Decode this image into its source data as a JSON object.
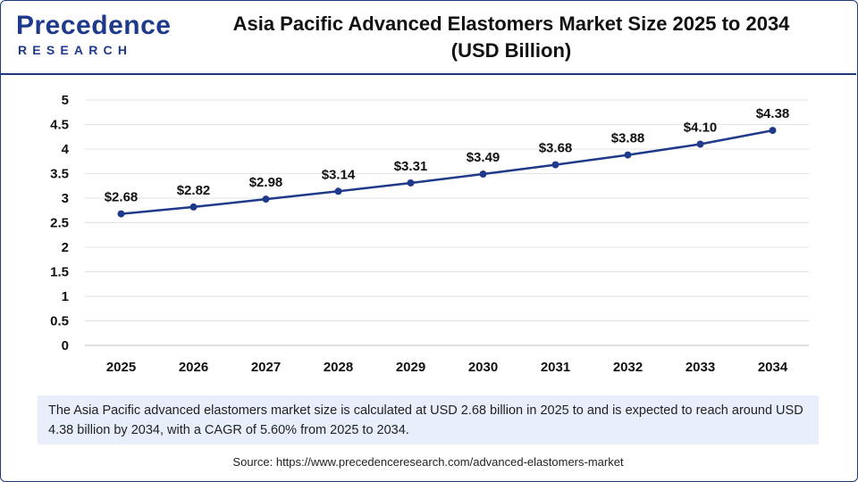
{
  "logo": {
    "main": "Precedence",
    "sub": "RESEARCH"
  },
  "title_line1": "Asia Pacific Advanced Elastomers Market Size 2025 to 2034",
  "title_line2": "(USD Billion)",
  "caption": "The Asia Pacific advanced elastomers market size is calculated at USD 2.68 billion in 2025 to and is expected to reach around USD 4.38 billion by 2034, with a CAGR of 5.60% from 2025 to 2034.",
  "source": "Source: https://www.precedenceresearch.com/advanced-elastomers-market",
  "colors": {
    "line": "#1f3a8a",
    "point": "#1f3a8a",
    "grid": "#e3e3e3",
    "axis": "#bfbfbf",
    "caption_bg": "#e8effb"
  },
  "chart_data": {
    "type": "line",
    "categories": [
      "2025",
      "2026",
      "2027",
      "2028",
      "2029",
      "2030",
      "2031",
      "2032",
      "2033",
      "2034"
    ],
    "values": [
      2.68,
      2.82,
      2.98,
      3.14,
      3.31,
      3.49,
      3.68,
      3.88,
      4.1,
      4.38
    ],
    "data_labels": [
      "$2.68",
      "$2.82",
      "$2.98",
      "$3.14",
      "$3.31",
      "$3.49",
      "$3.68",
      "$3.88",
      "$4.10",
      "$4.38"
    ],
    "y_ticks": [
      "0",
      "0.5",
      "1",
      "1.5",
      "2",
      "2.5",
      "3",
      "3.5",
      "4",
      "4.5",
      "5"
    ],
    "ylim": [
      0,
      5
    ],
    "grid": true,
    "legend": "none"
  }
}
